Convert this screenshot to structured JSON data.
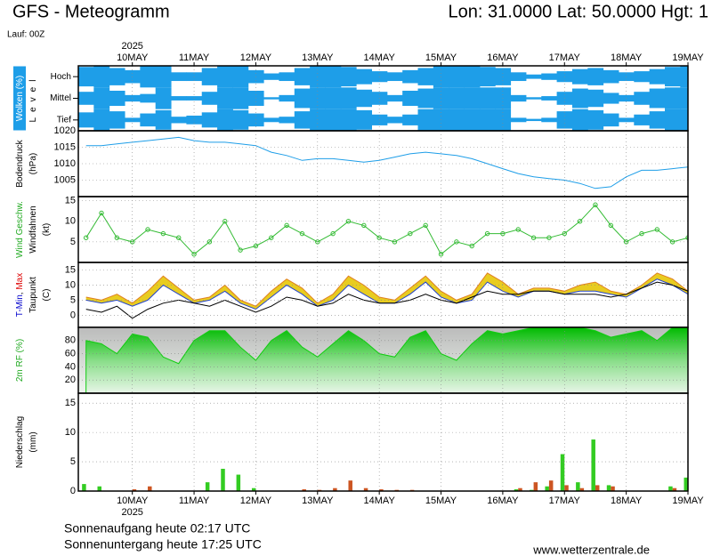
{
  "header": {
    "title": "GFS - Meteogramm",
    "location": "Lon: 31.0000  Lat: 50.0000  Hgt: 1",
    "run": "Lauf: 00Z"
  },
  "time_axis": {
    "year": "2025",
    "xlim": [
      -21,
      216
    ],
    "xticks": [
      {
        "value": 0,
        "label": "10MAY"
      },
      {
        "value": 24,
        "label": "11MAY"
      },
      {
        "value": 48,
        "label": "12MAY"
      },
      {
        "value": 72,
        "label": "13MAY"
      },
      {
        "value": 96,
        "label": "14MAY"
      },
      {
        "value": 120,
        "label": "15MAY"
      },
      {
        "value": 144,
        "label": "16MAY"
      },
      {
        "value": 168,
        "label": "17MAY"
      },
      {
        "value": 192,
        "label": "18MAY"
      },
      {
        "value": 216,
        "label": "19MAY"
      }
    ],
    "x": [
      -18,
      -12,
      -6,
      0,
      6,
      12,
      18,
      24,
      30,
      36,
      42,
      48,
      54,
      60,
      66,
      72,
      78,
      84,
      90,
      96,
      102,
      108,
      114,
      120,
      126,
      132,
      138,
      144,
      150,
      156,
      162,
      168,
      174,
      180,
      186,
      192,
      198,
      204,
      210,
      216
    ]
  },
  "chart_data": [
    {
      "type": "heatmap",
      "ylabel": [
        [
          {
            "text": "Wolken (%)",
            "color": "#ffffff",
            "background": "#1e9ee8"
          }
        ],
        [
          {
            "text": "Level",
            "color": "#000000"
          }
        ]
      ],
      "ylim": [
        0,
        100
      ],
      "color": "#1e9ee8",
      "series": [
        {
          "name": "Hoch",
          "values": [
            90,
            100,
            80,
            60,
            100,
            100,
            40,
            40,
            80,
            100,
            100,
            60,
            30,
            40,
            80,
            100,
            100,
            90,
            70,
            50,
            40,
            60,
            80,
            100,
            100,
            100,
            90,
            80,
            40,
            20,
            30,
            50,
            70,
            80,
            60,
            40,
            50,
            70,
            90,
            100
          ]
        },
        {
          "name": "Mittel",
          "values": [
            60,
            100,
            70,
            30,
            40,
            100,
            20,
            20,
            60,
            100,
            100,
            70,
            10,
            30,
            90,
            100,
            100,
            100,
            80,
            60,
            30,
            70,
            90,
            100,
            100,
            100,
            100,
            100,
            30,
            10,
            20,
            60,
            90,
            80,
            50,
            30,
            60,
            90,
            100,
            100
          ]
        },
        {
          "name": "Tief",
          "values": [
            70,
            100,
            80,
            20,
            60,
            90,
            30,
            40,
            70,
            100,
            90,
            60,
            20,
            30,
            80,
            100,
            100,
            100,
            90,
            50,
            30,
            50,
            100,
            100,
            100,
            100,
            100,
            100,
            20,
            10,
            20,
            80,
            100,
            90,
            60,
            20,
            50,
            80,
            100,
            100
          ]
        }
      ]
    },
    {
      "type": "line",
      "ylabel": [
        [
          {
            "text": "Bodendruck",
            "color": "#000000"
          }
        ],
        [
          {
            "text": "(hPa)",
            "color": "#000000"
          }
        ]
      ],
      "ylim": [
        1000,
        1020
      ],
      "yticks": [
        1005,
        1010,
        1015,
        1020
      ],
      "grid": true,
      "series": [
        {
          "name": "Bodendruck",
          "color": "#1e9ee8",
          "values": [
            1015.5,
            1015.5,
            1016,
            1016.5,
            1017,
            1017.5,
            1018,
            1017,
            1016.5,
            1016.5,
            1016,
            1015.5,
            1013.5,
            1012.5,
            1011,
            1011.5,
            1011.5,
            1011,
            1010.5,
            1011,
            1012,
            1013,
            1013.5,
            1013,
            1012.5,
            1011.5,
            1010,
            1008.5,
            1007,
            1006,
            1005.5,
            1005,
            1004,
            1002.5,
            1003,
            1006,
            1008,
            1008,
            1008.5,
            1009
          ]
        }
      ]
    },
    {
      "type": "line",
      "markers": true,
      "ylabel": [
        [
          {
            "text": "Wind Geschw.",
            "color": "#22aa22"
          }
        ],
        [
          {
            "text": "Windfahnen",
            "color": "#000000"
          }
        ],
        [
          {
            "text": "(kt)",
            "color": "#000000"
          }
        ]
      ],
      "ylim": [
        0,
        16
      ],
      "yticks": [
        5,
        10,
        15
      ],
      "grid": true,
      "series": [
        {
          "name": "Wind Geschw.",
          "color": "#33bb33",
          "values": [
            6,
            12,
            6,
            5,
            8,
            7,
            6,
            2,
            5,
            10,
            3,
            4,
            6,
            9,
            7,
            5,
            7,
            10,
            9,
            6,
            5,
            7,
            9,
            2,
            5,
            4,
            7,
            7,
            8,
            6,
            6,
            7,
            10,
            14,
            9,
            5,
            7,
            8,
            5,
            6
          ]
        }
      ]
    },
    {
      "type": "range",
      "ylabel": [
        [
          {
            "text": "T-Min",
            "color": "#0000cc"
          },
          {
            "text": ", ",
            "color": "#000000"
          },
          {
            "text": "Max",
            "color": "#dd0000"
          }
        ],
        [
          {
            "text": "Taupunkt",
            "color": "#000000"
          }
        ],
        [
          {
            "text": "(C)",
            "color": "#000000"
          }
        ]
      ],
      "ylim": [
        -4,
        17.5
      ],
      "yticks": [
        0,
        5,
        10,
        15
      ],
      "grid": true,
      "fill": "#e8cc20",
      "series": [
        {
          "name": "Max",
          "color": "#e08020",
          "values": [
            6,
            5,
            7,
            4,
            8,
            13,
            9,
            5,
            6,
            10,
            5,
            3,
            8,
            12,
            9,
            4,
            7,
            13,
            10,
            6,
            5,
            9,
            13,
            8,
            5,
            7,
            14,
            11,
            7,
            9,
            9,
            8,
            10,
            11,
            8,
            7,
            10,
            14,
            12,
            8
          ]
        },
        {
          "name": "T-Min",
          "color": "#2244cc",
          "values": [
            5,
            4,
            5,
            3,
            5,
            10,
            7,
            4,
            5,
            8,
            4,
            2,
            6,
            10,
            7,
            3,
            5,
            10,
            7,
            4,
            4,
            7,
            11,
            6,
            4,
            5,
            11,
            8,
            6,
            8,
            8,
            7,
            8,
            8,
            7,
            6,
            9,
            12,
            10,
            7
          ]
        },
        {
          "name": "Taupunkt",
          "color": "#000000",
          "values": [
            2,
            1,
            3,
            -1,
            2,
            4,
            5,
            4,
            3,
            5,
            3,
            1,
            3,
            6,
            5,
            3,
            4,
            7,
            5,
            4,
            4,
            5,
            7,
            5,
            4,
            6,
            8,
            7,
            7,
            8,
            8,
            7,
            7,
            7,
            6,
            7,
            9,
            11,
            10,
            8
          ]
        }
      ]
    },
    {
      "type": "area",
      "ylabel": [
        [
          {
            "text": "2m RF (%)",
            "color": "#22aa22"
          }
        ]
      ],
      "ylim": [
        0,
        100
      ],
      "yticks": [
        20,
        40,
        60,
        80
      ],
      "grid": true,
      "series": [
        {
          "name": "2m RF (%)",
          "color": "#11cc11",
          "values": [
            80,
            75,
            60,
            90,
            85,
            55,
            45,
            80,
            95,
            95,
            70,
            50,
            80,
            95,
            70,
            55,
            75,
            95,
            80,
            60,
            55,
            85,
            95,
            60,
            50,
            75,
            95,
            90,
            95,
            100,
            100,
            100,
            100,
            95,
            85,
            90,
            95,
            80,
            100,
            100
          ]
        }
      ]
    },
    {
      "type": "bar",
      "ylabel": [
        [
          {
            "text": "Niederschlag",
            "color": "#000000"
          }
        ],
        [
          {
            "text": "(mm)",
            "color": "#000000"
          }
        ]
      ],
      "ylim": [
        0,
        16.7
      ],
      "yticks": [
        0,
        5,
        10,
        15
      ],
      "grid": true,
      "series": [
        {
          "name": "Niederschlag",
          "color": "#33cc22",
          "values": [
            1.2,
            0.8,
            0,
            0,
            0,
            0,
            0,
            0,
            1.5,
            3.8,
            2.8,
            0.5,
            0,
            0,
            0,
            0,
            0,
            0,
            0,
            0,
            0,
            0,
            0,
            0,
            0,
            0,
            0,
            0,
            0.3,
            0.2,
            0.8,
            6.3,
            1.5,
            8.8,
            1,
            0,
            0,
            0,
            0.8,
            2.3
          ]
        },
        {
          "name": "Konvektiv",
          "color": "#cc5522",
          "values": [
            0,
            0,
            0,
            0.3,
            0.8,
            0,
            0,
            0,
            0,
            0,
            0,
            0,
            0,
            0,
            0.3,
            0.2,
            0.5,
            1.8,
            0.5,
            0.3,
            0.2,
            0.2,
            0,
            0,
            0,
            0,
            0,
            0,
            0.5,
            1.5,
            1.8,
            1,
            0.5,
            1,
            0.8,
            0,
            0,
            0,
            0.5,
            1.5
          ]
        }
      ]
    }
  ],
  "footer": {
    "sunrise": "Sonnenaufgang heute 02:17 UTC",
    "sunset": "Sonnenuntergang heute 17:25 UTC",
    "source": "www.wetterzentrale.de"
  }
}
